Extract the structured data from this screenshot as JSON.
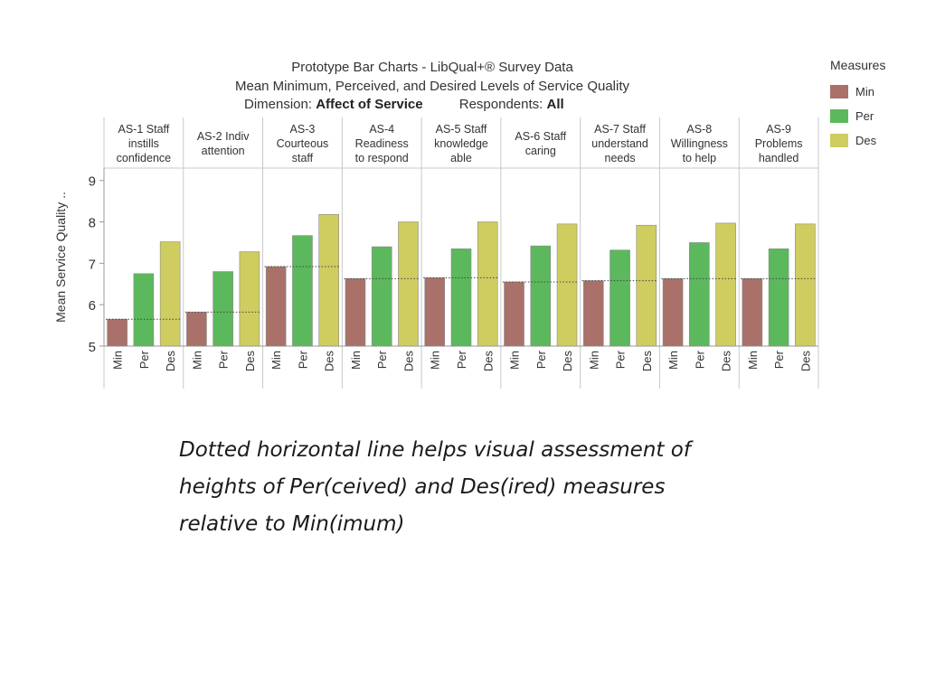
{
  "chart_data": {
    "type": "bar",
    "title": "Prototype Bar Charts - LibQual+® Survey Data",
    "subtitle": "Mean Minimum, Perceived, and Desired Levels of Service Quality",
    "dimension_label": "Dimension:",
    "dimension_value": "Affect of Service",
    "respondents_label": "Respondents:",
    "respondents_value": "All",
    "ylabel": "Mean Service Quality ..",
    "ylim": [
      5,
      9.3
    ],
    "yticks": [
      "5",
      "6",
      "7",
      "8",
      "9"
    ],
    "grid": false,
    "legend_placement": "right",
    "legend_title": "Measures",
    "measures": [
      {
        "name": "Min",
        "color": "#a9716a"
      },
      {
        "name": "Per",
        "color": "#5cb85c"
      },
      {
        "name": "Des",
        "color": "#cfcc60"
      }
    ],
    "panels": [
      {
        "header": [
          "AS-1 Staff",
          "instills",
          "confidence"
        ],
        "values": [
          5.65,
          6.75,
          7.52
        ]
      },
      {
        "header": [
          "AS-2 Indiv",
          "attention"
        ],
        "values": [
          5.82,
          6.8,
          7.28
        ]
      },
      {
        "header": [
          "AS-3",
          "Courteous",
          "staff"
        ],
        "values": [
          6.92,
          7.67,
          8.18
        ]
      },
      {
        "header": [
          "AS-4",
          "Readiness",
          "to respond"
        ],
        "values": [
          6.63,
          7.4,
          8.0
        ]
      },
      {
        "header": [
          "AS-5 Staff",
          "knowledge",
          "able"
        ],
        "values": [
          6.65,
          7.35,
          8.0
        ]
      },
      {
        "header": [
          "AS-6 Staff",
          "caring"
        ],
        "values": [
          6.55,
          7.42,
          7.95
        ]
      },
      {
        "header": [
          "AS-7 Staff",
          "understand",
          "needs"
        ],
        "values": [
          6.58,
          7.32,
          7.92
        ]
      },
      {
        "header": [
          "AS-8",
          "Willingness",
          "to help"
        ],
        "values": [
          6.63,
          7.5,
          7.97
        ]
      },
      {
        "header": [
          "AS-9",
          "Problems",
          "handled"
        ],
        "values": [
          6.63,
          7.35,
          7.95
        ]
      }
    ]
  },
  "caption": {
    "line1": "Dotted horizontal line helps visual assessment of",
    "line2": "heights of Per(ceived)  and Des(ired) measures",
    "line3": "relative to Min(imum)"
  }
}
